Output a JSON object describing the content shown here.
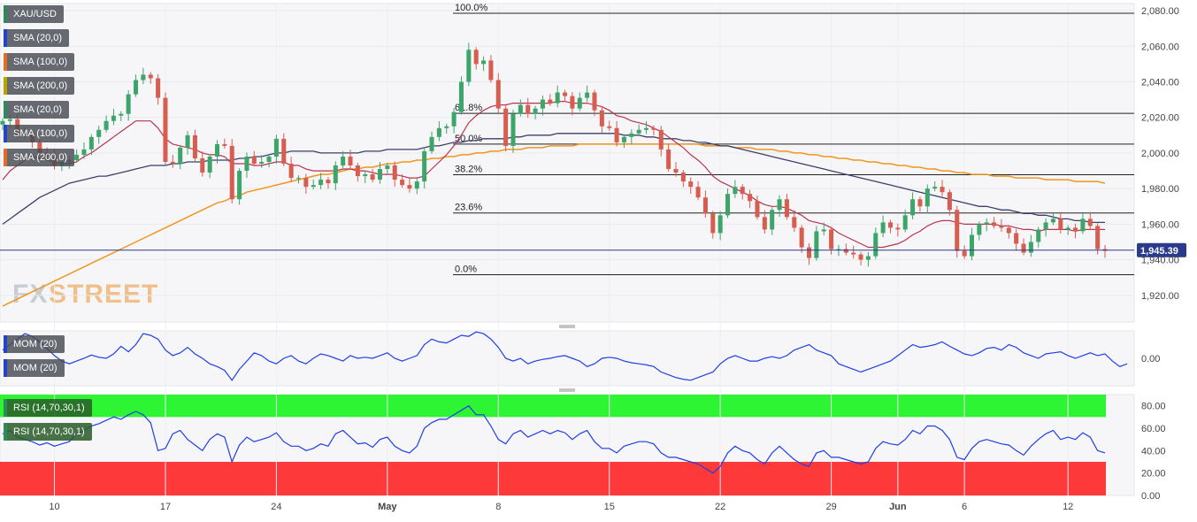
{
  "chart_data": [
    {
      "type": "candlestick",
      "symbol": "XAU/USD",
      "legend": [
        {
          "label": "XAU/USD",
          "swatch": "#2e8b57"
        },
        {
          "label": "SMA (20,0)",
          "swatch": "#2244cc"
        },
        {
          "label": "SMA (100,0)",
          "swatch": "#e07020"
        },
        {
          "label": "SMA (200,0)",
          "swatch": "#b8a300"
        },
        {
          "label": "SMA (20,0)",
          "swatch": "#2e8b57"
        },
        {
          "label": "SMA (100,0)",
          "swatch": "#2244cc"
        },
        {
          "label": "SMA (200,0)",
          "swatch": "#e07020"
        }
      ],
      "y_ticks": [
        "2,080.00",
        "2,060.00",
        "2,040.00",
        "2,020.00",
        "2,000.00",
        "1,980.00",
        "1,960.00",
        "1,940.00",
        "1,920.00"
      ],
      "ylim": [
        1905,
        2084
      ],
      "last_price_label": "1,945.39",
      "last_price": 1945.39,
      "fibonacci": [
        {
          "label": "100.0%",
          "value": 2078.5
        },
        {
          "label": "61.8%",
          "value": 2022.3
        },
        {
          "label": "50.0%",
          "value": 2005.0
        },
        {
          "label": "38.2%",
          "value": 1987.8
        },
        {
          "label": "23.6%",
          "value": 1966.3
        },
        {
          "label": "0.0%",
          "value": 1931.6
        }
      ],
      "x_labels": [
        {
          "label": "10",
          "idx": 7
        },
        {
          "label": "17",
          "idx": 22
        },
        {
          "label": "24",
          "idx": 37
        },
        {
          "label": "May",
          "idx": 52
        },
        {
          "label": "8",
          "idx": 67
        },
        {
          "label": "15",
          "idx": 82
        },
        {
          "label": "22",
          "idx": 97
        },
        {
          "label": "29",
          "idx": 112
        },
        {
          "label": "Jun",
          "idx": 121
        },
        {
          "label": "6",
          "idx": 130
        },
        {
          "label": "12",
          "idx": 144
        }
      ],
      "closes": [
        2018,
        2019,
        2010,
        2011,
        2006,
        2000,
        1998,
        1993,
        1995,
        1996,
        1999,
        2002,
        2009,
        2013,
        2018,
        2021,
        2022,
        2033,
        2041,
        2044,
        2042,
        2031,
        1995,
        1994,
        2003,
        2010,
        1997,
        1989,
        1998,
        2005,
        2004,
        1974,
        1990,
        1998,
        1994,
        1995,
        1998,
        2008,
        1994,
        1986,
        1986,
        1981,
        1982,
        1985,
        1983,
        1993,
        1998,
        1993,
        1987,
        1988,
        1985,
        1991,
        1993,
        1985,
        1982,
        1980,
        1984,
        2001,
        2009,
        2014,
        2015,
        2023,
        2040,
        2058,
        2050,
        2052,
        2041,
        2025,
        2004,
        2022,
        2027,
        2022,
        2025,
        2030,
        2028,
        2034,
        2032,
        2025,
        2031,
        2034,
        2024,
        2015,
        2014,
        2006,
        2009,
        2011,
        2013,
        2014,
        2013,
        2002,
        1991,
        1989,
        1984,
        1981,
        1975,
        1966,
        1955,
        1965,
        1977,
        1981,
        1977,
        1973,
        1964,
        1957,
        1968,
        1974,
        1964,
        1958,
        1947,
        1941,
        1956,
        1957,
        1946,
        1946,
        1944,
        1943,
        1940,
        1942,
        1955,
        1961,
        1958,
        1957,
        1965,
        1974,
        1970,
        1980,
        1981,
        1978,
        1968,
        1945,
        1942,
        1954,
        1960,
        1961,
        1959,
        1958,
        1955,
        1949,
        1944,
        1950,
        1957,
        1961,
        1963,
        1957,
        1958,
        1956,
        1963,
        1959,
        1946,
        1945
      ],
      "sma20": [
        1985,
        1990,
        1993,
        1996,
        1998,
        1997,
        1996,
        1995,
        1994,
        1994,
        1995,
        1998,
        2000,
        2003,
        2006,
        2009,
        2012,
        2015,
        2018,
        2018,
        2018,
        2014,
        2008,
        2005,
        2004,
        2003,
        2002,
        2000,
        1999,
        1999,
        1998,
        1994,
        1994,
        1994,
        1993,
        1993,
        1994,
        1995,
        1995,
        1993,
        1993,
        1991,
        1990,
        1990,
        1990,
        1990,
        1991,
        1991,
        1990,
        1990,
        1989,
        1988,
        1988,
        1988,
        1987,
        1986,
        1986,
        1987,
        1991,
        1995,
        1999,
        2004,
        2010,
        2017,
        2021,
        2024,
        2026,
        2027,
        2027,
        2028,
        2028,
        2028,
        2028,
        2028,
        2028,
        2029,
        2029,
        2028,
        2028,
        2028,
        2027,
        2026,
        2024,
        2021,
        2020,
        2018,
        2017,
        2016,
        2014,
        2012,
        2009,
        2006,
        2003,
        1999,
        1996,
        1992,
        1987,
        1984,
        1982,
        1980,
        1978,
        1976,
        1973,
        1971,
        1970,
        1970,
        1969,
        1967,
        1965,
        1962,
        1961,
        1960,
        1958,
        1955,
        1953,
        1951,
        1949,
        1947,
        1947,
        1947,
        1948,
        1949,
        1951,
        1954,
        1956,
        1959,
        1961,
        1962,
        1962,
        1961,
        1960,
        1960,
        1960,
        1960,
        1960,
        1959,
        1959,
        1958,
        1957,
        1957,
        1956,
        1957,
        1957,
        1957,
        1957,
        1956,
        1957,
        1957,
        1957,
        1957
      ],
      "sma100": [
        1960,
        1963,
        1966,
        1969,
        1972,
        1975,
        1977,
        1979,
        1981,
        1983,
        1984,
        1985,
        1986,
        1987,
        1987,
        1988,
        1989,
        1990,
        1991,
        1992,
        1993,
        1993,
        1993,
        1994,
        1994,
        1995,
        1995,
        1995,
        1996,
        1996,
        1996,
        1996,
        1997,
        1997,
        1998,
        1998,
        1999,
        2000,
        2000,
        2001,
        2001,
        2001,
        2001,
        2000,
        2000,
        2000,
        2000,
        2000,
        2000,
        2001,
        2001,
        2001,
        2002,
        2002,
        2002,
        2002,
        2002,
        2003,
        2004,
        2004,
        2005,
        2006,
        2006,
        2007,
        2007,
        2008,
        2008,
        2008,
        2008,
        2009,
        2009,
        2010,
        2010,
        2010,
        2010,
        2011,
        2011,
        2011,
        2011,
        2011,
        2011,
        2011,
        2011,
        2011,
        2010,
        2010,
        2010,
        2009,
        2009,
        2008,
        2008,
        2008,
        2007,
        2007,
        2006,
        2006,
        2005,
        2004,
        2004,
        2003,
        2002,
        2001,
        2000,
        1999,
        1998,
        1997,
        1996,
        1995,
        1994,
        1993,
        1992,
        1991,
        1990,
        1989,
        1988,
        1987,
        1986,
        1985,
        1984,
        1983,
        1982,
        1981,
        1980,
        1979,
        1978,
        1977,
        1976,
        1975,
        1974,
        1973,
        1972,
        1971,
        1970,
        1970,
        1969,
        1968,
        1968,
        1967,
        1966,
        1966,
        1965,
        1965,
        1964,
        1963,
        1963,
        1962,
        1962,
        1961,
        1961,
        1961
      ],
      "sma200": [
        1914,
        1916,
        1918,
        1920,
        1922,
        1924,
        1926,
        1928,
        1930,
        1932,
        1934,
        1936,
        1938,
        1940,
        1942,
        1944,
        1946,
        1948,
        1950,
        1952,
        1954,
        1956,
        1958,
        1960,
        1962,
        1964,
        1966,
        1968,
        1970,
        1972,
        1973,
        1975,
        1976,
        1978,
        1979,
        1980,
        1981,
        1982,
        1983,
        1984,
        1985,
        1986,
        1987,
        1988,
        1988,
        1989,
        1990,
        1991,
        1991,
        1992,
        1992,
        1993,
        1994,
        1994,
        1995,
        1995,
        1996,
        1996,
        1997,
        1997,
        1998,
        1998,
        1999,
        1999,
        2000,
        2000,
        2001,
        2001,
        2002,
        2002,
        2002,
        2003,
        2003,
        2003,
        2004,
        2004,
        2004,
        2004,
        2005,
        2005,
        2005,
        2005,
        2005,
        2005,
        2005,
        2005,
        2005,
        2005,
        2005,
        2005,
        2005,
        2005,
        2005,
        2005,
        2005,
        2004,
        2004,
        2004,
        2004,
        2003,
        2003,
        2003,
        2002,
        2002,
        2002,
        2001,
        2001,
        2000,
        2000,
        1999,
        1999,
        1998,
        1998,
        1997,
        1997,
        1996,
        1996,
        1995,
        1995,
        1994,
        1994,
        1993,
        1993,
        1992,
        1992,
        1991,
        1991,
        1990,
        1990,
        1989,
        1989,
        1988,
        1988,
        1988,
        1987,
        1987,
        1987,
        1986,
        1986,
        1986,
        1986,
        1985,
        1985,
        1985,
        1985,
        1984,
        1984,
        1984,
        1984,
        1983
      ]
    },
    {
      "type": "line",
      "name": "MOM (20)",
      "legend": [
        "MOM (20)",
        "MOM (20)"
      ],
      "y_ticks": [
        "0.00"
      ],
      "ylim": [
        -50,
        50
      ],
      "values": [
        15,
        25,
        35,
        45,
        40,
        30,
        18,
        5,
        -5,
        -10,
        -5,
        0,
        6,
        2,
        0,
        8,
        22,
        12,
        25,
        45,
        42,
        35,
        15,
        5,
        10,
        20,
        8,
        0,
        -10,
        -15,
        -22,
        -40,
        -20,
        -5,
        10,
        5,
        -5,
        -10,
        0,
        5,
        -5,
        -10,
        0,
        8,
        5,
        0,
        -5,
        5,
        0,
        2,
        0,
        5,
        10,
        0,
        -5,
        0,
        5,
        25,
        35,
        30,
        28,
        35,
        42,
        40,
        48,
        45,
        35,
        20,
        0,
        -5,
        0,
        -10,
        -5,
        -2,
        0,
        3,
        5,
        0,
        -5,
        -15,
        -10,
        0,
        2,
        0,
        -5,
        -8,
        -10,
        -12,
        -15,
        -25,
        -30,
        -35,
        -38,
        -40,
        -35,
        -30,
        -25,
        -10,
        0,
        5,
        0,
        -5,
        -5,
        0,
        3,
        0,
        5,
        15,
        20,
        25,
        15,
        10,
        5,
        -10,
        -15,
        -20,
        -25,
        -20,
        -15,
        -10,
        -5,
        5,
        15,
        25,
        20,
        22,
        25,
        30,
        22,
        15,
        8,
        5,
        10,
        18,
        20,
        15,
        25,
        20,
        10,
        5,
        0,
        8,
        10,
        12,
        5,
        0,
        5,
        10,
        5,
        8,
        -5,
        -15,
        -10
      ]
    },
    {
      "type": "line",
      "name": "RSI (14,70,30,1)",
      "legend": [
        "RSI (14,70,30,1)",
        "RSI (14,70,30,1)"
      ],
      "y_ticks": [
        "80.00",
        "60.00",
        "40.00",
        "20.00",
        "0.00"
      ],
      "ylim": [
        0,
        90
      ],
      "overbought": 70,
      "oversold": 30,
      "values": [
        55,
        58,
        52,
        50,
        48,
        45,
        47,
        44,
        46,
        48,
        55,
        58,
        62,
        64,
        67,
        70,
        68,
        72,
        75,
        72,
        65,
        40,
        42,
        55,
        58,
        50,
        45,
        40,
        50,
        55,
        52,
        30,
        45,
        52,
        48,
        50,
        52,
        56,
        48,
        44,
        44,
        40,
        42,
        46,
        44,
        55,
        58,
        52,
        46,
        47,
        43,
        50,
        52,
        44,
        40,
        38,
        44,
        60,
        65,
        68,
        68,
        72,
        76,
        80,
        72,
        72,
        62,
        50,
        46,
        55,
        58,
        52,
        55,
        58,
        55,
        58,
        56,
        50,
        55,
        58,
        48,
        42,
        42,
        38,
        44,
        46,
        48,
        48,
        46,
        38,
        34,
        34,
        32,
        30,
        28,
        24,
        20,
        26,
        38,
        44,
        40,
        38,
        32,
        28,
        38,
        44,
        38,
        32,
        28,
        26,
        38,
        40,
        34,
        34,
        32,
        30,
        28,
        30,
        42,
        48,
        46,
        45,
        50,
        58,
        55,
        62,
        62,
        58,
        50,
        34,
        32,
        42,
        48,
        50,
        48,
        46,
        45,
        40,
        36,
        44,
        50,
        55,
        58,
        50,
        52,
        50,
        56,
        52,
        40,
        38
      ]
    }
  ]
}
